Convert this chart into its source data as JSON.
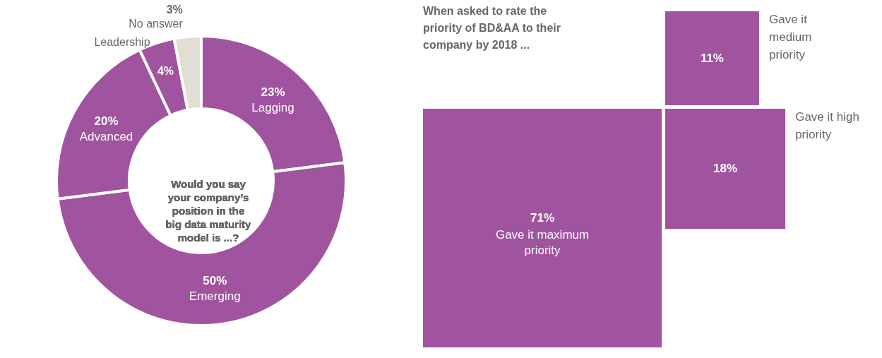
{
  "chart_data": [
    {
      "type": "donut",
      "title": "Would you say your company’s position in the big data maturity model is ...?",
      "categories": [
        "Lagging",
        "Emerging",
        "Advanced",
        "Leadership",
        "No answer"
      ],
      "values": [
        23,
        50,
        20,
        4,
        3
      ],
      "value_labels": [
        "23%",
        "50%",
        "20%",
        "4%",
        "3%"
      ],
      "colors": [
        "#a0549f",
        "#a0549f",
        "#a0549f",
        "#a0549f",
        "#e2ded3"
      ]
    },
    {
      "type": "other",
      "title": "When asked to rate the priority of BD&AA to their company by 2018 ...",
      "categories": [
        "Gave it maximum priority",
        "Gave it high priority",
        "Gave it medium priority"
      ],
      "values": [
        71,
        18,
        11
      ],
      "value_labels": [
        "71%",
        "18%",
        "11%"
      ],
      "color": "#a0549f"
    }
  ]
}
